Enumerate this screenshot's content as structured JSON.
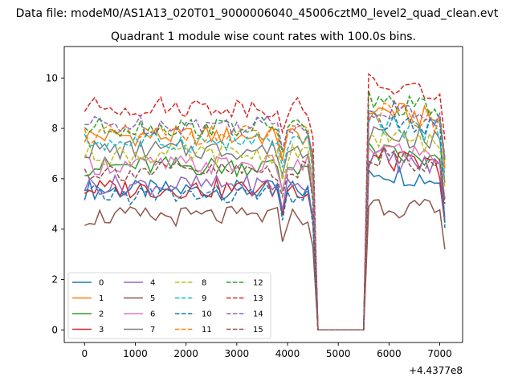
{
  "figure": {
    "suptitle": "Data file: modeM0/AS1A13_020T01_9000006040_45006cztM0_level2_quad_clean.evt",
    "title": "Quadrant 1 module wise count rates with 100.0s bins.",
    "x_offset_label": "+4.4377e8"
  },
  "chart_data": {
    "type": "line",
    "title": "Quadrant 1 module wise count rates with 100.0s bins.",
    "xlabel": "",
    "ylabel": "",
    "x_offset": "+4.4377e8",
    "xlim": [
      -400,
      7450
    ],
    "ylim": [
      -0.5,
      11.25
    ],
    "xticks": [
      0,
      1000,
      2000,
      3000,
      4000,
      5000,
      6000,
      7000
    ],
    "yticks": [
      0,
      2,
      4,
      6,
      8,
      10
    ],
    "grid": false,
    "legend": {
      "placement": "lower-left",
      "columns": 4
    },
    "x_start": 0,
    "x_step": 100,
    "x_count": 72,
    "gap": {
      "from_index": 46,
      "to_index": 55,
      "value": 0
    },
    "series": [
      {
        "name": "0",
        "color": "#1f77b4",
        "dash": "solid",
        "levels": [
          5.6,
          5.5
        ],
        "mean": 5.55,
        "post_mean": 6.4
      },
      {
        "name": "1",
        "color": "#ff7f0e",
        "dash": "solid",
        "levels": [
          7.8,
          7.6
        ],
        "mean": 7.7,
        "post_mean": 8.8
      },
      {
        "name": "2",
        "color": "#2ca02c",
        "dash": "solid",
        "levels": [
          6.6,
          6.4
        ],
        "mean": 6.5,
        "post_mean": 7.1
      },
      {
        "name": "3",
        "color": "#d62728",
        "dash": "solid",
        "levels": [
          5.5,
          5.6
        ],
        "mean": 5.6,
        "post_mean": 6.9
      },
      {
        "name": "4",
        "color": "#9467bd",
        "dash": "solid",
        "levels": [
          5.7,
          5.8
        ],
        "mean": 5.75,
        "post_mean": 6.9
      },
      {
        "name": "5",
        "color": "#8c564b",
        "dash": "solid",
        "levels": [
          4.5,
          4.5
        ],
        "mean": 4.5,
        "post_mean": 5.1
      },
      {
        "name": "6",
        "color": "#e377c2",
        "dash": "solid",
        "levels": [
          6.5,
          6.6
        ],
        "mean": 6.55,
        "post_mean": 7.3
      },
      {
        "name": "7",
        "color": "#7f7f7f",
        "dash": "solid",
        "levels": [
          7.0,
          7.3
        ],
        "mean": 7.15,
        "post_mean": 7.9
      },
      {
        "name": "8",
        "color": "#bcbd22",
        "dash": "dashed",
        "levels": [
          6.9,
          7.0
        ],
        "mean": 6.95,
        "post_mean": 7.8
      },
      {
        "name": "9",
        "color": "#17becf",
        "dash": "dashed",
        "levels": [
          7.4,
          7.5
        ],
        "mean": 7.45,
        "post_mean": 8.3
      },
      {
        "name": "10",
        "color": "#1f77b4",
        "dash": "dashed",
        "levels": [
          5.5,
          5.2
        ],
        "mean": 5.35,
        "post_mean": 8.4
      },
      {
        "name": "11",
        "color": "#ff7f0e",
        "dash": "dashed",
        "levels": [
          7.7,
          7.8
        ],
        "mean": 7.75,
        "post_mean": 8.7
      },
      {
        "name": "12",
        "color": "#2ca02c",
        "dash": "dashed",
        "levels": [
          8.1,
          8.0
        ],
        "mean": 8.05,
        "post_mean": 9.1
      },
      {
        "name": "13",
        "color": "#d62728",
        "dash": "dashed",
        "levels": [
          8.9,
          8.8
        ],
        "mean": 8.85,
        "post_mean": 9.8
      },
      {
        "name": "14",
        "color": "#9467bd",
        "dash": "dashed",
        "levels": [
          8.2,
          8.1
        ],
        "mean": 8.15,
        "post_mean": 8.9
      },
      {
        "name": "15",
        "color": "#8c564b",
        "dash": "dashed",
        "levels": [
          6.2,
          6.4
        ],
        "mean": 6.3,
        "post_mean": 7.0
      }
    ]
  }
}
